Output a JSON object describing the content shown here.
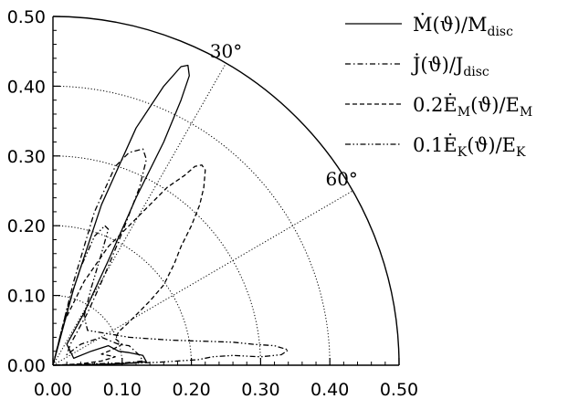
{
  "chart_data": {
    "type": "line",
    "coordinate_system": "polar (quarter plane)",
    "x_ticks": [
      "0.00",
      "0.10",
      "0.20",
      "0.30",
      "0.40",
      "0.50"
    ],
    "y_ticks": [
      "0.00",
      "0.10",
      "0.20",
      "0.30",
      "0.40",
      "0.50"
    ],
    "xlim": [
      0,
      0.5
    ],
    "ylim": [
      0,
      0.5
    ],
    "radial_circles": [
      0.1,
      0.2,
      0.3,
      0.4
    ],
    "angle_lines_deg": [
      30,
      60
    ],
    "angle_labels": [
      "30°",
      "60°"
    ],
    "legend_position": "top-right",
    "series": [
      {
        "name": "Ṁ(ϑ)/M_disc",
        "legend_parts": [
          "Ṁ(ϑ)/M",
          "disc"
        ],
        "style": "solid",
        "points": [
          [
            0,
            0
          ],
          [
            0.03,
            0.11
          ],
          [
            0.07,
            0.23
          ],
          [
            0.12,
            0.34
          ],
          [
            0.16,
            0.4
          ],
          [
            0.185,
            0.428
          ],
          [
            0.195,
            0.43
          ],
          [
            0.197,
            0.415
          ],
          [
            0.185,
            0.38
          ],
          [
            0.16,
            0.32
          ],
          [
            0.12,
            0.24
          ],
          [
            0.08,
            0.15
          ],
          [
            0.045,
            0.075
          ],
          [
            0.02,
            0.03
          ],
          [
            0.03,
            0.01
          ],
          [
            0.055,
            0.02
          ],
          [
            0.08,
            0.028
          ],
          [
            0.095,
            0.02
          ],
          [
            0.11,
            0.018
          ],
          [
            0.13,
            0.014
          ],
          [
            0.135,
            0.005
          ],
          [
            0.1,
            0.002
          ],
          [
            0.06,
            0.001
          ],
          [
            0,
            0
          ]
        ]
      },
      {
        "name": "J̇(ϑ)/J_disc",
        "legend_parts": [
          "J̇(ϑ)/J",
          "disc"
        ],
        "style": "dash-dot",
        "points": [
          [
            0,
            0
          ],
          [
            0.03,
            0.12
          ],
          [
            0.06,
            0.22
          ],
          [
            0.09,
            0.285
          ],
          [
            0.11,
            0.305
          ],
          [
            0.13,
            0.31
          ],
          [
            0.135,
            0.295
          ],
          [
            0.125,
            0.255
          ],
          [
            0.1,
            0.19
          ],
          [
            0.075,
            0.13
          ],
          [
            0.05,
            0.075
          ],
          [
            0.025,
            0.03
          ],
          [
            0.02,
            0.015
          ],
          [
            0.04,
            0.03
          ],
          [
            0.07,
            0.04
          ],
          [
            0.095,
            0.03
          ],
          [
            0.11,
            0.028
          ],
          [
            0.125,
            0.014
          ],
          [
            0.13,
            0.006
          ],
          [
            0.09,
            0.002
          ],
          [
            0.045,
            0.001
          ],
          [
            0,
            0
          ]
        ]
      },
      {
        "name": "0.2Ė_M(ϑ)/E_M",
        "legend_parts": [
          "0.2Ė",
          "M",
          "(ϑ)/E",
          "M"
        ],
        "style": "dashed",
        "points": [
          [
            0,
            0
          ],
          [
            0.015,
            0.06
          ],
          [
            0.045,
            0.12
          ],
          [
            0.08,
            0.17
          ],
          [
            0.11,
            0.2
          ],
          [
            0.14,
            0.23
          ],
          [
            0.165,
            0.255
          ],
          [
            0.19,
            0.272
          ],
          [
            0.205,
            0.285
          ],
          [
            0.215,
            0.287
          ],
          [
            0.22,
            0.28
          ],
          [
            0.218,
            0.255
          ],
          [
            0.212,
            0.23
          ],
          [
            0.2,
            0.2
          ],
          [
            0.185,
            0.17
          ],
          [
            0.175,
            0.145
          ],
          [
            0.16,
            0.115
          ],
          [
            0.14,
            0.092
          ],
          [
            0.12,
            0.072
          ],
          [
            0.108,
            0.06
          ],
          [
            0.095,
            0.048
          ],
          [
            0.09,
            0.038
          ],
          [
            0.1,
            0.03
          ],
          [
            0.085,
            0.022
          ],
          [
            0.07,
            0.016
          ],
          [
            0.09,
            0.012
          ],
          [
            0.07,
            0.006
          ],
          [
            0.04,
            0.002
          ],
          [
            0,
            0
          ]
        ]
      },
      {
        "name": "0.1Ė_K(ϑ)/E_K",
        "legend_parts": [
          "0.1Ė",
          "K",
          "(ϑ)/E",
          "K"
        ],
        "style": "dash-dot-dot",
        "points": [
          [
            0,
            0
          ],
          [
            0.02,
            0.08
          ],
          [
            0.04,
            0.14
          ],
          [
            0.06,
            0.185
          ],
          [
            0.075,
            0.2
          ],
          [
            0.08,
            0.195
          ],
          [
            0.07,
            0.16
          ],
          [
            0.055,
            0.11
          ],
          [
            0.045,
            0.07
          ],
          [
            0.05,
            0.05
          ],
          [
            0.08,
            0.045
          ],
          [
            0.11,
            0.04
          ],
          [
            0.14,
            0.038
          ],
          [
            0.17,
            0.036
          ],
          [
            0.2,
            0.035
          ],
          [
            0.23,
            0.034
          ],
          [
            0.26,
            0.033
          ],
          [
            0.29,
            0.03
          ],
          [
            0.32,
            0.028
          ],
          [
            0.34,
            0.022
          ],
          [
            0.33,
            0.015
          ],
          [
            0.3,
            0.012
          ],
          [
            0.26,
            0.014
          ],
          [
            0.23,
            0.012
          ],
          [
            0.21,
            0.008
          ],
          [
            0.18,
            0.006
          ],
          [
            0.15,
            0.004
          ],
          [
            0.12,
            0.003
          ],
          [
            0.09,
            0.003
          ],
          [
            0.06,
            0.002
          ],
          [
            0.03,
            0.001
          ],
          [
            0,
            0
          ]
        ]
      }
    ]
  },
  "colors": {
    "ink": "#000000",
    "background": "#ffffff"
  }
}
